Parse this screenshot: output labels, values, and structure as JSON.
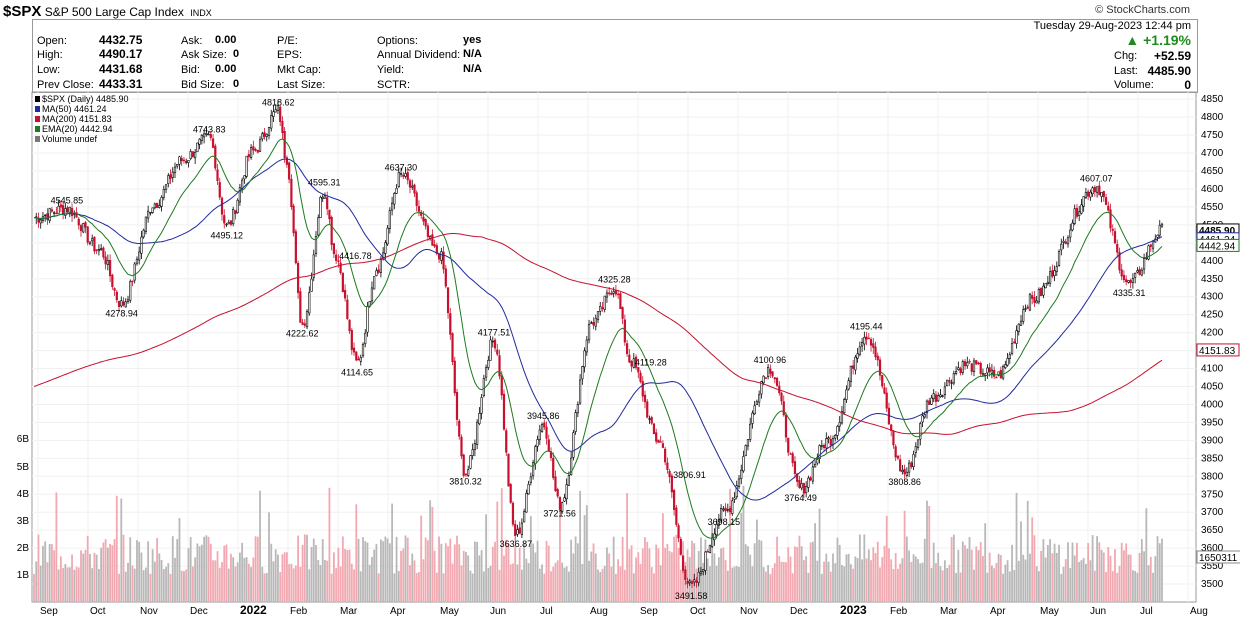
{
  "header": {
    "symbol": "$SPX",
    "name": "S&P 500 Large Cap Index",
    "exchange": "INDX",
    "brand": "© StockCharts.com",
    "date": "Tuesday  29-Aug-2023  12:44 pm",
    "pct_change": "+1.19%",
    "chg_label": "Chg:",
    "chg_value": "+52.59",
    "last_label": "Last:",
    "last_value": "4485.90",
    "volume_label": "Volume:",
    "volume_value": "0"
  },
  "quote": {
    "open_label": "Open:",
    "open": "4432.75",
    "high_label": "High:",
    "high": "4490.17",
    "low_label": "Low:",
    "low": "4431.68",
    "prev_label": "Prev Close:",
    "prev": "4433.31",
    "ask_label": "Ask:",
    "ask": "0.00",
    "asksize_label": "Ask Size:",
    "asksize": "0",
    "bid_label": "Bid:",
    "bid": "0.00",
    "bidsize_label": "Bid Size:",
    "bidsize": "0",
    "pe_label": "P/E:",
    "eps_label": "EPS:",
    "mktcap_label": "Mkt Cap:",
    "lastsize_label": "Last Size:",
    "options_label": "Options:",
    "options": "yes",
    "dividend_label": "Annual Dividend:",
    "dividend": "N/A",
    "yield_label": "Yield:",
    "yield": "N/A",
    "sctr_label": "SCTR:"
  },
  "legend": {
    "price": "$SPX (Daily) 4485.90",
    "ma50": "MA(50) 4461.24",
    "ma200": "MA(200) 4151.83",
    "ema20": "EMA(20) 4442.94",
    "volume": "Volume undef"
  },
  "colors": {
    "up_candle": "#000000",
    "down_candle": "#c8102e",
    "ma50": "#1f2a9e",
    "ma200": "#c8102e",
    "ema20": "#1e7a1e",
    "volume_up": "#b8b8b8",
    "volume_down": "#f2a8b0"
  },
  "chart_data": {
    "type": "candlestick",
    "title": "$SPX (Daily) 4485.90",
    "x_axis": {
      "ticks": [
        "Sep",
        "Oct",
        "Nov",
        "Dec",
        "2022",
        "Feb",
        "Mar",
        "Apr",
        "May",
        "Jun",
        "Jul",
        "Aug",
        "Sep",
        "Oct",
        "Nov",
        "Dec",
        "2023",
        "Feb",
        "Mar",
        "Apr",
        "May",
        "Jun",
        "Jul",
        "Aug"
      ],
      "range": [
        "2021-09",
        "2023-08-29"
      ]
    },
    "y_axis": {
      "ylim": [
        3450,
        4870
      ],
      "ticks": [
        3500,
        3550,
        3600,
        3650,
        3700,
        3750,
        3800,
        3850,
        3900,
        3950,
        4000,
        4050,
        4100,
        4150,
        4200,
        4250,
        4300,
        4350,
        4400,
        4450,
        4500,
        4550,
        4600,
        4650,
        4700,
        4750,
        4800,
        4850
      ]
    },
    "volume_axis": {
      "ticks": [
        "1B",
        "2B",
        "3B",
        "4B",
        "5B",
        "6B"
      ]
    },
    "price_labels": {
      "last": "4485.90",
      "ma50": "4461.24",
      "ema20": "4442.94",
      "ma200": "4151.83",
      "volume": "1650311"
    },
    "anchors": [
      {
        "t": 0.0,
        "v": 4520
      },
      {
        "t": 0.03,
        "v": 4545.85
      },
      {
        "t": 0.06,
        "v": 4430
      },
      {
        "t": 0.08,
        "v": 4278.94
      },
      {
        "t": 0.11,
        "v": 4560
      },
      {
        "t": 0.135,
        "v": 4680
      },
      {
        "t": 0.16,
        "v": 4743.83
      },
      {
        "t": 0.176,
        "v": 4495.12
      },
      {
        "t": 0.2,
        "v": 4705
      },
      {
        "t": 0.223,
        "v": 4818.62
      },
      {
        "t": 0.23,
        "v": 4690
      },
      {
        "t": 0.245,
        "v": 4222.62
      },
      {
        "t": 0.265,
        "v": 4595.31
      },
      {
        "t": 0.275,
        "v": 4416.78
      },
      {
        "t": 0.295,
        "v": 4114.65
      },
      {
        "t": 0.313,
        "v": 4380
      },
      {
        "t": 0.335,
        "v": 4637.3
      },
      {
        "t": 0.37,
        "v": 4420
      },
      {
        "t": 0.394,
        "v": 3810.32
      },
      {
        "t": 0.42,
        "v": 4177.51
      },
      {
        "t": 0.44,
        "v": 3636.87
      },
      {
        "t": 0.465,
        "v": 3945.86
      },
      {
        "t": 0.48,
        "v": 3721.56
      },
      {
        "t": 0.51,
        "v": 4230
      },
      {
        "t": 0.53,
        "v": 4325.28
      },
      {
        "t": 0.545,
        "v": 4119.28
      },
      {
        "t": 0.57,
        "v": 3900
      },
      {
        "t": 0.6,
        "v": 3491.58
      },
      {
        "t": 0.63,
        "v": 3698.15
      },
      {
        "t": 0.672,
        "v": 4100.96
      },
      {
        "t": 0.7,
        "v": 3764.49
      },
      {
        "t": 0.725,
        "v": 3900
      },
      {
        "t": 0.76,
        "v": 4195.44
      },
      {
        "t": 0.795,
        "v": 3808.86
      },
      {
        "t": 0.82,
        "v": 4020
      },
      {
        "t": 0.85,
        "v": 4110
      },
      {
        "t": 0.88,
        "v": 4080
      },
      {
        "t": 0.91,
        "v": 4290
      },
      {
        "t": 0.97,
        "v": 4607.07
      },
      {
        "t": 1.0,
        "v": 4335.31
      },
      {
        "t": 1.03,
        "v": 4485.9
      }
    ],
    "annotations": [
      {
        "text": "4545.85",
        "v": 4545.85,
        "t": 0.03,
        "pos": "above"
      },
      {
        "text": "4743.83",
        "v": 4743.83,
        "t": 0.16,
        "pos": "above"
      },
      {
        "text": "4818.62",
        "v": 4818.62,
        "t": 0.223,
        "pos": "above"
      },
      {
        "text": "4495.12",
        "v": 4495.12,
        "t": 0.176,
        "pos": "below"
      },
      {
        "text": "4278.94",
        "v": 4278.94,
        "t": 0.08,
        "pos": "below"
      },
      {
        "text": "4595.31",
        "v": 4595.31,
        "t": 0.265,
        "pos": "above"
      },
      {
        "text": "4416.78",
        "v": 4416.78,
        "t": 0.275,
        "pos": "right"
      },
      {
        "text": "4222.62",
        "v": 4222.62,
        "t": 0.245,
        "pos": "below"
      },
      {
        "text": "4114.65",
        "v": 4114.65,
        "t": 0.295,
        "pos": "below"
      },
      {
        "text": "4637.30",
        "v": 4637.3,
        "t": 0.335,
        "pos": "above"
      },
      {
        "text": "4177.51",
        "v": 4177.51,
        "t": 0.42,
        "pos": "above"
      },
      {
        "text": "3810.32",
        "v": 3810.32,
        "t": 0.394,
        "pos": "below"
      },
      {
        "text": "3945.86",
        "v": 3945.86,
        "t": 0.465,
        "pos": "above"
      },
      {
        "text": "3721.56",
        "v": 3721.56,
        "t": 0.48,
        "pos": "below"
      },
      {
        "text": "3636.87",
        "v": 3636.87,
        "t": 0.44,
        "pos": "below"
      },
      {
        "text": "4325.28",
        "v": 4325.28,
        "t": 0.53,
        "pos": "above"
      },
      {
        "text": "4119.28",
        "v": 4119.28,
        "t": 0.545,
        "pos": "right"
      },
      {
        "text": "3806.91",
        "v": 3806.91,
        "t": 0.58,
        "pos": "right"
      },
      {
        "text": "3491.58",
        "v": 3491.58,
        "t": 0.6,
        "pos": "below"
      },
      {
        "text": "3698.15",
        "v": 3698.15,
        "t": 0.63,
        "pos": "below"
      },
      {
        "text": "4100.96",
        "v": 4100.96,
        "t": 0.672,
        "pos": "above"
      },
      {
        "text": "3764.49",
        "v": 3764.49,
        "t": 0.7,
        "pos": "below"
      },
      {
        "text": "4195.44",
        "v": 4195.44,
        "t": 0.76,
        "pos": "above"
      },
      {
        "text": "3808.86",
        "v": 3808.86,
        "t": 0.795,
        "pos": "below"
      },
      {
        "text": "4607.07",
        "v": 4607.07,
        "t": 0.97,
        "pos": "above"
      },
      {
        "text": "4335.31",
        "v": 4335.31,
        "t": 1.0,
        "pos": "below"
      }
    ]
  }
}
